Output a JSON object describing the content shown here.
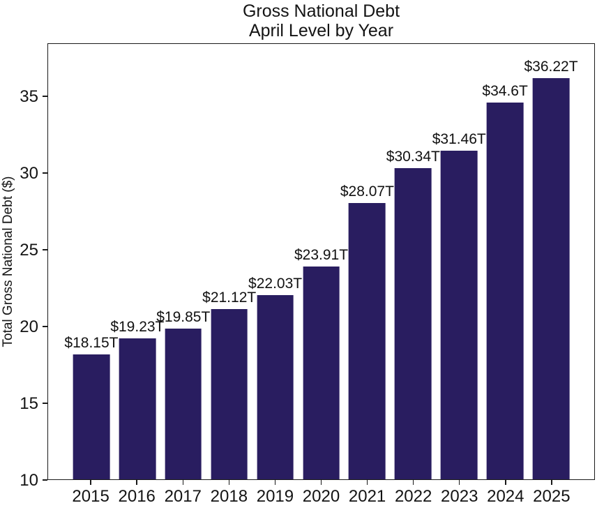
{
  "chart_data": {
    "type": "bar",
    "title": "Gross National Debt",
    "subtitle": "April Level by Year",
    "xlabel": "",
    "ylabel": "Total Gross National Debt ($)",
    "categories": [
      "2015",
      "2016",
      "2017",
      "2018",
      "2019",
      "2020",
      "2021",
      "2022",
      "2023",
      "2024",
      "2025"
    ],
    "values": [
      18.15,
      19.23,
      19.85,
      21.12,
      22.03,
      23.91,
      28.07,
      30.34,
      31.46,
      34.6,
      36.22
    ],
    "bar_labels": [
      "$18.15T",
      "$19.23T",
      "$19.85T",
      "$21.12T",
      "$22.03T",
      "$23.91T",
      "$28.07T",
      "$30.34T",
      "$31.46T",
      "$34.6T",
      "$36.22T"
    ],
    "yticks": [
      10,
      15,
      20,
      25,
      30,
      35
    ],
    "ylim": [
      10,
      38.45
    ],
    "xlim": [
      -0.94,
      10.94
    ],
    "bar_width": 0.8,
    "bar_color": "#291d60",
    "axis_color": "#1a1a1a",
    "text_color": "#141414",
    "background_color": "#ffffff",
    "grid": false,
    "legend": "none"
  }
}
